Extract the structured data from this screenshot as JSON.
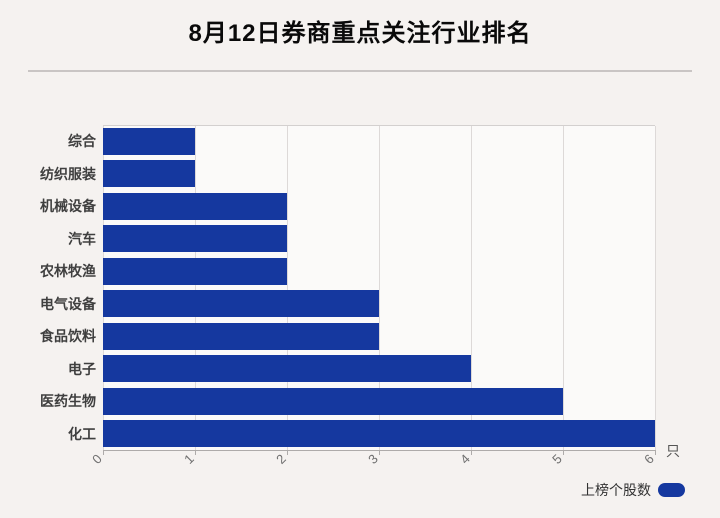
{
  "header": {
    "title": "8月12日券商重点关注行业排名"
  },
  "chart_data": {
    "type": "bar",
    "orientation": "horizontal",
    "title": "8月12日券商重点关注行业排名",
    "series_name": "上榜个股数",
    "categories": [
      "综合",
      "纺织服装",
      "机械设备",
      "汽车",
      "农林牧渔",
      "电气设备",
      "食品饮料",
      "电子",
      "医药生物",
      "化工"
    ],
    "values": [
      1,
      1,
      2,
      2,
      2,
      3,
      3,
      4,
      5,
      6
    ],
    "xlim": [
      0,
      6
    ],
    "xticks": [
      "0",
      "1",
      "2",
      "3",
      "4",
      "5",
      "6"
    ],
    "xtick_rotation_deg": -45,
    "x_unit": "只",
    "grid": true,
    "legend_position": "bottom-right",
    "bar_color": "#15389f"
  },
  "legend": {
    "label": "上榜个股数",
    "marker_color": "#15389f"
  },
  "colors": {
    "page_background": "#f5f2f0",
    "plot_background": "#fbfaf9",
    "bar": "#15389f",
    "gridline": "#ddd9d8",
    "axis_line": "#aeabaa"
  }
}
